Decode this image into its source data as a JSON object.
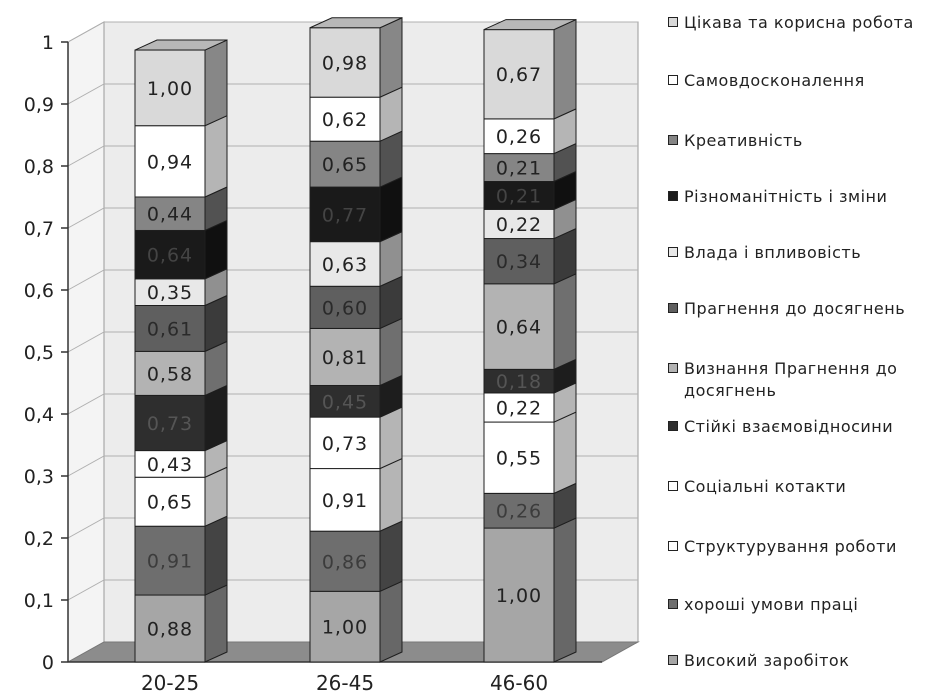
{
  "chart_data": {
    "type": "bar",
    "stacked": true,
    "three_d": true,
    "categories": [
      "20-25",
      "26-45",
      "46-60"
    ],
    "ylim": [
      0,
      1
    ],
    "yticks": [
      "0",
      "0,1",
      "0,2",
      "0,3",
      "0,4",
      "0,5",
      "0,6",
      "0,7",
      "0,8",
      "0,9",
      "1"
    ],
    "legend_position": "right",
    "series": [
      {
        "name": "Високий заробіток",
        "color": "#a6a6a6",
        "text_color": "#222222",
        "values": [
          0.108,
          0.114,
          0.216
        ],
        "labels": [
          "0,88",
          "1,00",
          "1,00"
        ]
      },
      {
        "name": "хороші умови праці",
        "color": "#6e6e6e",
        "text_color": "#3c3c3c",
        "values": [
          0.111,
          0.097,
          0.056
        ],
        "labels": [
          "0,91",
          "0,86",
          "0,26"
        ]
      },
      {
        "name": "Структурування роботи",
        "color": "#ffffff",
        "text_color": "#222222",
        "values": [
          0.079,
          0.101,
          0.115
        ],
        "labels": [
          "0,65",
          "0,91",
          "0,55"
        ]
      },
      {
        "name": "Соціальні котакти",
        "color": "#ffffff",
        "text_color": "#222222",
        "values": [
          0.043,
          0.083,
          0.047
        ],
        "labels": [
          "0,43",
          "0,73",
          "0,22"
        ]
      },
      {
        "name": "Стійкі взаємовідносини",
        "color": "#2e2e2e",
        "text_color": "#555555",
        "values": [
          0.089,
          0.051,
          0.038
        ],
        "labels": [
          "0,73",
          "0,45",
          "0,18"
        ]
      },
      {
        "name": "Визнання Прагнення до досягнень",
        "color": "#b3b3b3",
        "text_color": "#222222",
        "values": [
          0.071,
          0.092,
          0.138
        ],
        "labels": [
          "0,58",
          "0,81",
          "0,64"
        ]
      },
      {
        "name": "Прагнення до досягнень",
        "color": "#5f5f5f",
        "text_color": "#2a2a2a",
        "values": [
          0.074,
          0.068,
          0.073
        ],
        "labels": [
          "0,61",
          "0,60",
          "0,34"
        ]
      },
      {
        "name": "Влада і впливовість",
        "color": "#e8e8e8",
        "text_color": "#222222",
        "values": [
          0.043,
          0.072,
          0.047
        ],
        "labels": [
          "0,35",
          "0,63",
          "0,22"
        ]
      },
      {
        "name": "Різноманітність і зміни",
        "color": "#1a1a1a",
        "text_color": "#444444",
        "values": [
          0.078,
          0.088,
          0.045
        ],
        "labels": [
          "0,64",
          "0,77",
          "0,21"
        ]
      },
      {
        "name": "Креативність",
        "color": "#858585",
        "text_color": "#222222",
        "values": [
          0.054,
          0.074,
          0.045
        ],
        "labels": [
          "0,44",
          "0,65",
          "0,21"
        ]
      },
      {
        "name": "Самовдосконалення",
        "color": "#ffffff",
        "text_color": "#222222",
        "values": [
          0.115,
          0.071,
          0.056
        ],
        "labels": [
          "0,94",
          "0,62",
          "0,26"
        ]
      },
      {
        "name": "Цікава та корисна робота",
        "color": "#d9d9d9",
        "text_color": "#222222",
        "values": [
          0.122,
          0.112,
          0.144
        ],
        "labels": [
          "1,00",
          "0,98",
          "0,67"
        ]
      }
    ]
  },
  "legend": {
    "items": [
      {
        "label": "Цікава та корисна робота",
        "color": "#d9d9d9"
      },
      {
        "label": "Самовдосконалення",
        "color": "#ffffff"
      },
      {
        "label": "Креативність",
        "color": "#858585"
      },
      {
        "label": "Різноманітність і зміни",
        "color": "#1a1a1a"
      },
      {
        "label": "Влада і впливовість",
        "color": "#e8e8e8"
      },
      {
        "label": "Прагнення до досягнень",
        "color": "#5f5f5f"
      },
      {
        "label": "Визнання Прагнення до досягнень",
        "color": "#b3b3b3"
      },
      {
        "label": "Стійкі взаємовідносини",
        "color": "#2e2e2e"
      },
      {
        "label": "Соціальні котакти",
        "color": "#ffffff"
      },
      {
        "label": "Структурування роботи",
        "color": "#ffffff"
      },
      {
        "label": "хороші умови праці",
        "color": "#6e6e6e"
      },
      {
        "label": "Високий заробіток",
        "color": "#a6a6a6"
      }
    ]
  }
}
